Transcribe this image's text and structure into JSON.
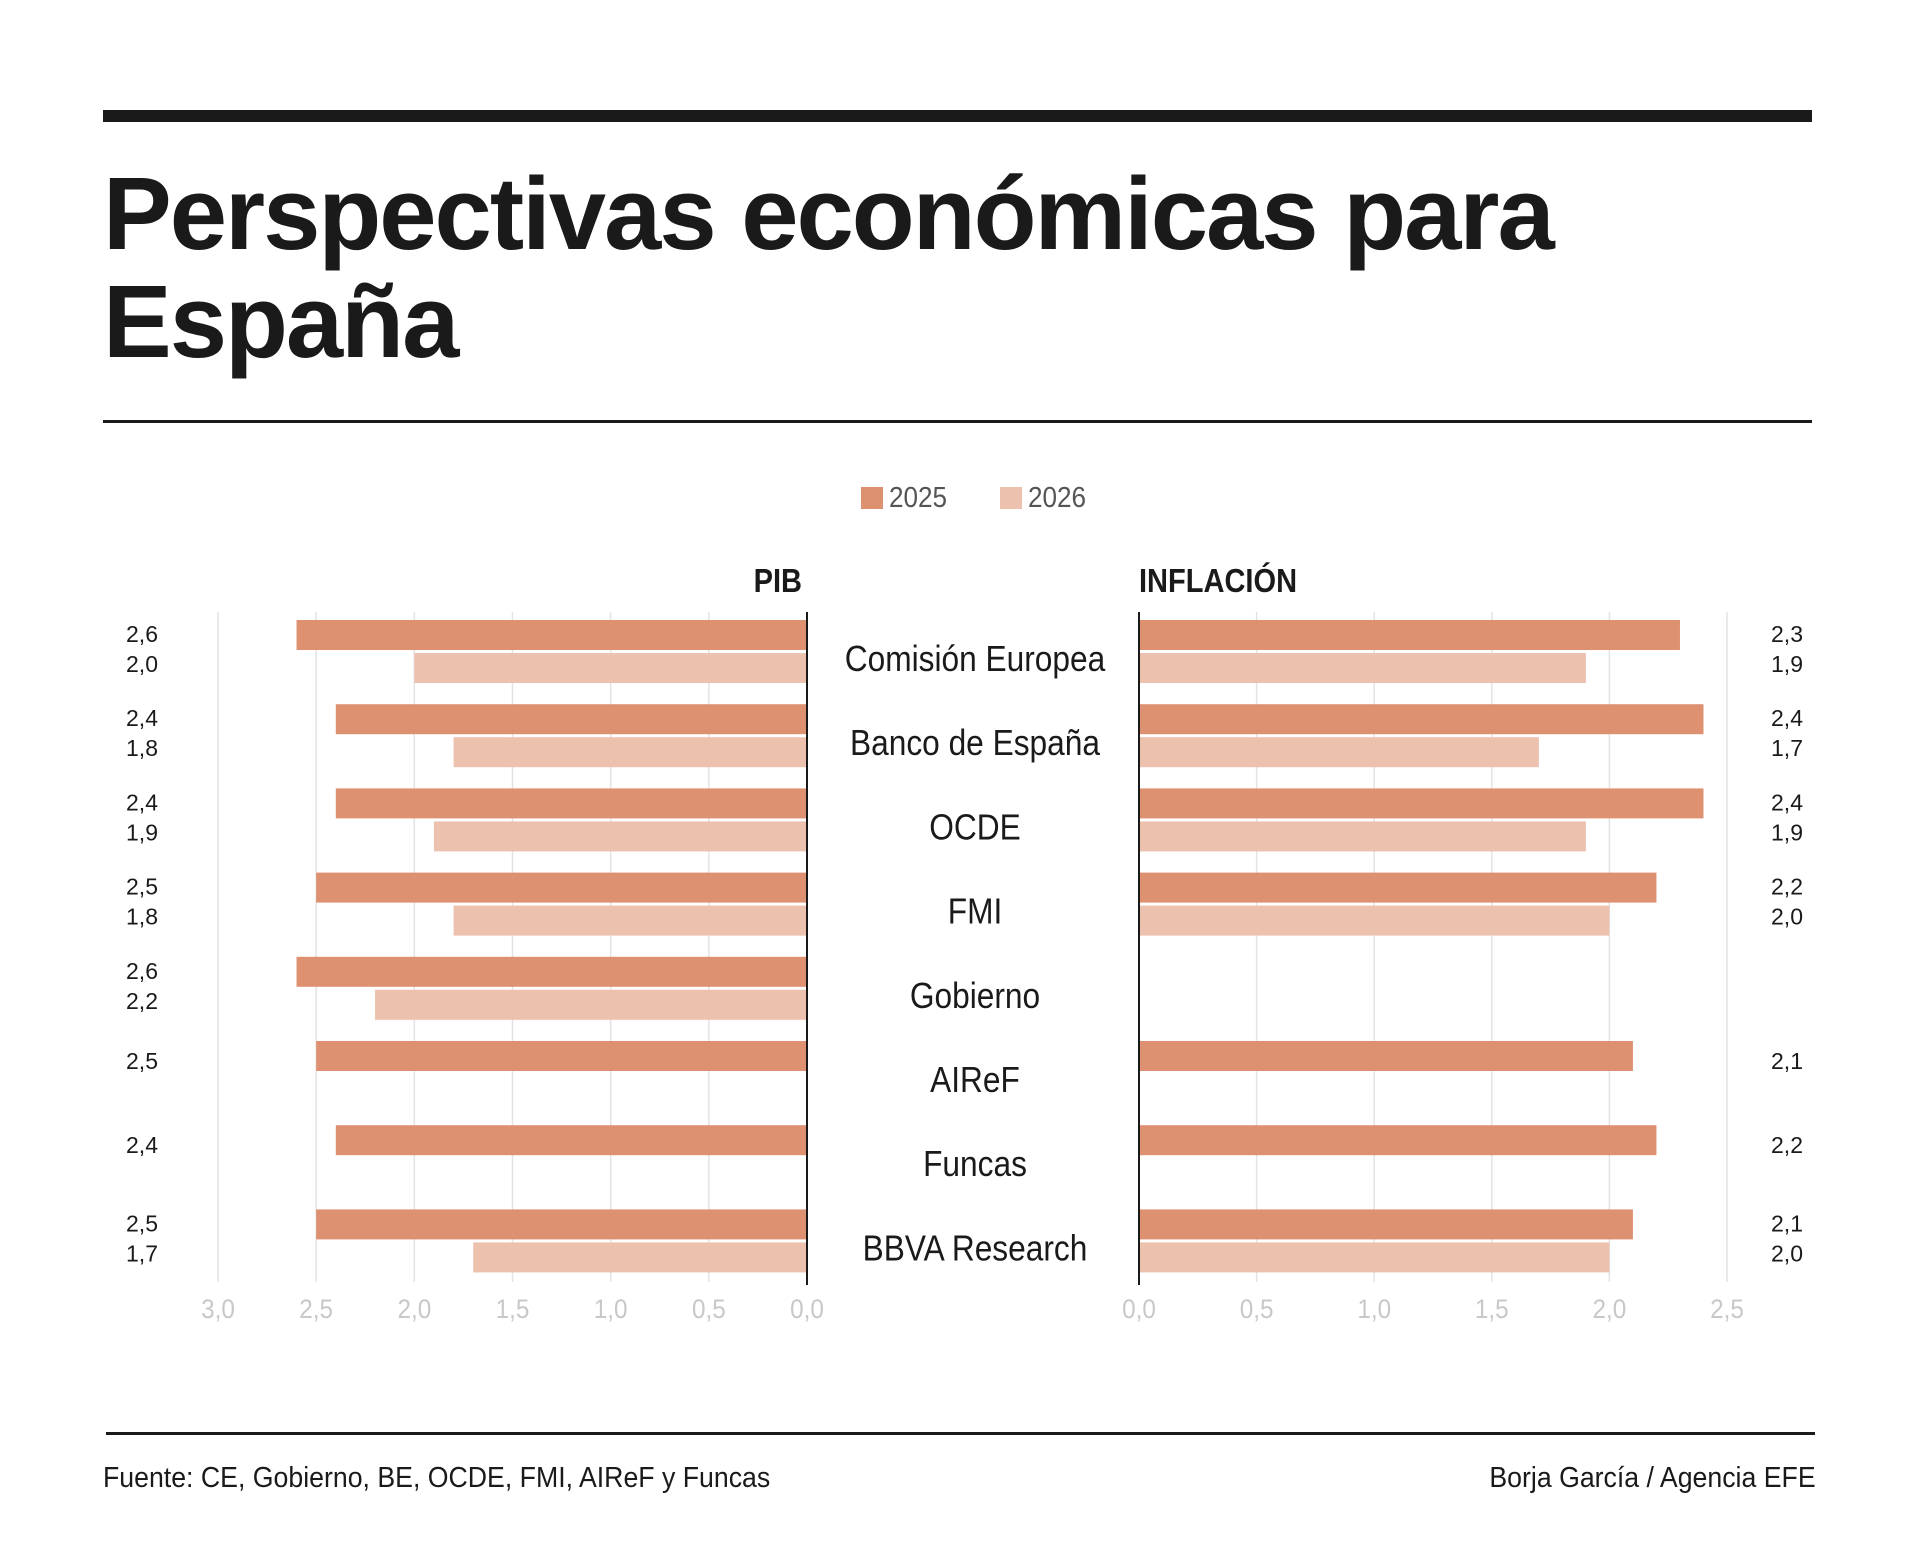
{
  "title": "Perspectivas económicas para España",
  "footer": {
    "source": "Fuente: CE, Gobierno, BE, OCDE, FMI, AIReF y Funcas",
    "credit": "Borja García / Agencia EFE"
  },
  "colors": {
    "series_2025": "#de9170",
    "series_2026": "#ecc1ae",
    "grid": "#e3e3e3",
    "axis": "#1a1a1a",
    "tick_label": "#c8c8c8",
    "text": "#1a1a1a"
  },
  "chart_data": [
    {
      "type": "bar",
      "orientation": "horizontal",
      "direction": "reversed",
      "title": "PIB",
      "categories": [
        "Comisión Europea",
        "Banco de España",
        "OCDE",
        "FMI",
        "Gobierno",
        "AIReF",
        "Funcas",
        "BBVA Research"
      ],
      "series": [
        {
          "name": "2025",
          "values": [
            2.6,
            2.4,
            2.4,
            2.5,
            2.6,
            2.5,
            2.4,
            2.5
          ],
          "labels": [
            "2,6",
            "2,4",
            "2,4",
            "2,5",
            "2,6",
            "2,5",
            "2,4",
            "2,5"
          ]
        },
        {
          "name": "2026",
          "values": [
            2.0,
            1.8,
            1.9,
            1.8,
            2.2,
            null,
            null,
            1.7
          ],
          "labels": [
            "2,0",
            "1,8",
            "1,9",
            "1,8",
            "2,2",
            "",
            "",
            "1,7"
          ]
        }
      ],
      "xlim": [
        0,
        3.0
      ],
      "xticks": [
        3.0,
        2.5,
        2.0,
        1.5,
        1.0,
        0.5,
        0.0
      ],
      "xtick_labels": [
        "3,0",
        "2,5",
        "2,0",
        "1,5",
        "1,0",
        "0,5",
        "0,0"
      ],
      "grid": true
    },
    {
      "type": "bar",
      "orientation": "horizontal",
      "title": "INFLACIÓN",
      "categories": [
        "Comisión Europea",
        "Banco de España",
        "OCDE",
        "FMI",
        "Gobierno",
        "AIReF",
        "Funcas",
        "BBVA Research"
      ],
      "series": [
        {
          "name": "2025",
          "values": [
            2.3,
            2.4,
            2.4,
            2.2,
            null,
            2.1,
            2.2,
            2.1
          ],
          "labels": [
            "2,3",
            "2,4",
            "2,4",
            "2,2",
            "",
            "2,1",
            "2,2",
            "2,1"
          ]
        },
        {
          "name": "2026",
          "values": [
            1.9,
            1.7,
            1.9,
            2.0,
            null,
            null,
            null,
            2.0
          ],
          "labels": [
            "1,9",
            "1,7",
            "1,9",
            "2,0",
            "",
            "",
            "",
            "2,0"
          ]
        }
      ],
      "xlim": [
        0,
        2.5
      ],
      "xticks": [
        0.0,
        0.5,
        1.0,
        1.5,
        2.0,
        2.5
      ],
      "xtick_labels": [
        "0,0",
        "0,5",
        "1,0",
        "1,5",
        "2,0",
        "2,5"
      ],
      "grid": true
    }
  ],
  "legend": [
    {
      "name": "2025",
      "color": "#de9170"
    },
    {
      "name": "2026",
      "color": "#ecc1ae"
    }
  ]
}
